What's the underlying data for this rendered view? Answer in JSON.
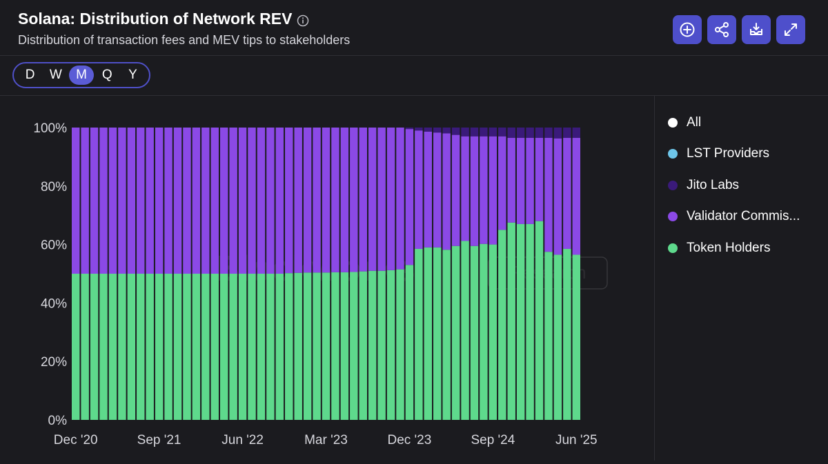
{
  "header": {
    "title": "Solana: Distribution of Network REV",
    "subtitle": "Distribution of transaction fees and MEV tips to stakeholders",
    "info_icon": "info-circle-icon",
    "toolbar": [
      {
        "name": "add-button",
        "icon": "plus-circle-icon"
      },
      {
        "name": "share-button",
        "icon": "share-icon"
      },
      {
        "name": "download-button",
        "icon": "download-tray-icon"
      },
      {
        "name": "expand-button",
        "icon": "expand-arrows-icon"
      }
    ],
    "accent_color": "#4e4fcb"
  },
  "periods": {
    "options": [
      "D",
      "W",
      "M",
      "Q",
      "Y"
    ],
    "selected": "M"
  },
  "legend": [
    {
      "label": "All",
      "color": "#ffffff"
    },
    {
      "label": "LST Providers",
      "color": "#6ec6ea"
    },
    {
      "label": "Jito Labs",
      "color": "#3a1a7a"
    },
    {
      "label": "Validator Commis...",
      "color": "#8b49e6"
    },
    {
      "label": "Token Holders",
      "color": "#5ed98c"
    }
  ],
  "chart_data": {
    "type": "bar",
    "stacked": true,
    "x_tick_labels": [
      "Dec '20",
      "Sep '21",
      "Jun '22",
      "Mar '23",
      "Dec '23",
      "Sep '24",
      "Jun '25"
    ],
    "categories": [
      "Dec '20",
      "Jan '21",
      "Feb '21",
      "Mar '21",
      "Apr '21",
      "May '21",
      "Jun '21",
      "Jul '21",
      "Aug '21",
      "Sep '21",
      "Oct '21",
      "Nov '21",
      "Dec '21",
      "Jan '22",
      "Feb '22",
      "Mar '22",
      "Apr '22",
      "May '22",
      "Jun '22",
      "Jul '22",
      "Aug '22",
      "Sep '22",
      "Oct '22",
      "Nov '22",
      "Dec '22",
      "Jan '23",
      "Feb '23",
      "Mar '23",
      "Apr '23",
      "May '23",
      "Jun '23",
      "Jul '23",
      "Aug '23",
      "Sep '23",
      "Oct '23",
      "Nov '23",
      "Dec '23",
      "Jan '24",
      "Feb '24",
      "Mar '24",
      "Apr '24",
      "May '24",
      "Jun '24",
      "Jul '24",
      "Aug '24",
      "Sep '24",
      "Oct '24",
      "Nov '24",
      "Dec '24",
      "Jan '25",
      "Feb '25",
      "Mar '25",
      "Apr '25",
      "May '25",
      "Jun '25"
    ],
    "series": [
      {
        "name": "Token Holders",
        "color": "#5ed98c",
        "values": [
          50,
          50,
          50,
          50,
          50,
          50,
          50,
          50,
          50,
          50,
          50,
          50,
          50,
          50,
          50,
          50,
          50,
          50,
          50,
          50,
          50,
          50,
          50,
          50.2,
          50.3,
          50.4,
          50.4,
          50.4,
          50.5,
          50.5,
          50.6,
          50.8,
          51,
          51,
          51.2,
          51.5,
          53,
          58.5,
          59,
          59,
          58.2,
          59.5,
          61.2,
          59.5,
          60.2,
          60,
          65,
          67.5,
          67,
          67,
          68,
          57.5,
          56.5,
          58.5,
          56.5
        ]
      },
      {
        "name": "Validator Commission",
        "color": "#8b49e6",
        "values": [
          50,
          50,
          50,
          50,
          50,
          50,
          50,
          50,
          50,
          50,
          50,
          50,
          50,
          50,
          50,
          50,
          50,
          50,
          50,
          50,
          50,
          50,
          50,
          49.8,
          49.7,
          49.6,
          49.6,
          49.6,
          49.5,
          49.5,
          49.4,
          49.2,
          49,
          49,
          48.8,
          48.5,
          46.5,
          40.5,
          39.6,
          39.3,
          39.8,
          38,
          35.8,
          37.5,
          36.8,
          37,
          32,
          29,
          29.5,
          29.5,
          28.5,
          39,
          39.8,
          38,
          40
        ]
      },
      {
        "name": "Jito Labs",
        "color": "#3a1a7a",
        "values": [
          0,
          0,
          0,
          0,
          0,
          0,
          0,
          0,
          0,
          0,
          0,
          0,
          0,
          0,
          0,
          0,
          0,
          0,
          0,
          0,
          0,
          0,
          0,
          0,
          0,
          0,
          0,
          0,
          0,
          0,
          0,
          0,
          0,
          0,
          0,
          0,
          0.5,
          1,
          1.4,
          1.7,
          2,
          2.5,
          3,
          3,
          3,
          3,
          3,
          3.5,
          3.5,
          3.5,
          3.5,
          3.5,
          3.7,
          3.5,
          3.5
        ]
      }
    ],
    "y_axis": {
      "min": 0,
      "max": 100,
      "ticks": [
        "0%",
        "20%",
        "40%",
        "60%",
        "80%",
        "100%"
      ]
    },
    "watermark": {
      "brand": "Blockworks",
      "tag": "Research"
    },
    "grid": false,
    "legend_position": "right"
  }
}
